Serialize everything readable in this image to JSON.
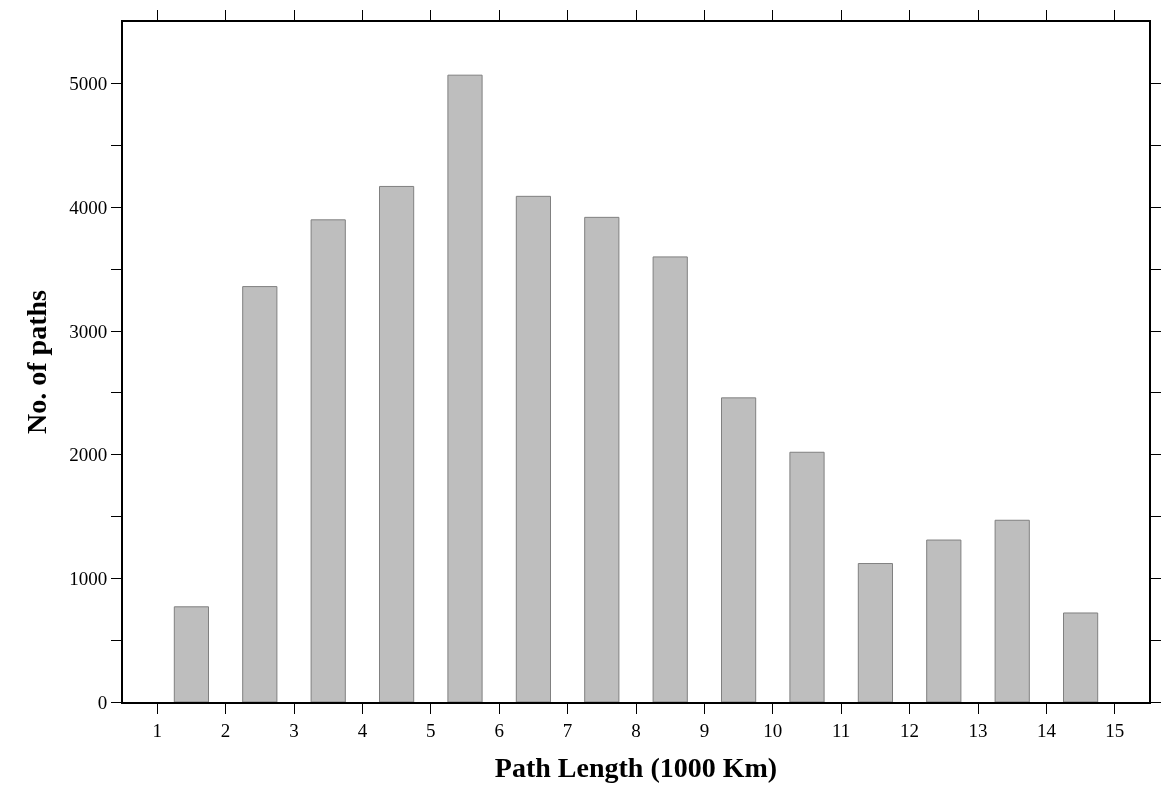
{
  "chart_data": {
    "type": "bar",
    "xlabel": "Path Length (1000 Km)",
    "ylabel": "No. of paths",
    "x": [
      1.5,
      2.5,
      3.5,
      4.5,
      5.5,
      6.5,
      7.5,
      8.5,
      9.5,
      10.5,
      11.5,
      12.5,
      13.5,
      14.5
    ],
    "values": [
      770,
      3360,
      3900,
      4170,
      5070,
      4090,
      3920,
      3600,
      2460,
      2020,
      1120,
      1310,
      1470,
      720
    ],
    "color": "#bebebe",
    "xlim": [
      0.5,
      15.5
    ],
    "xticks": [
      1,
      2,
      3,
      4,
      5,
      6,
      7,
      8,
      9,
      10,
      11,
      12,
      13,
      14,
      15
    ],
    "ylim": [
      0,
      5500
    ],
    "yticks": [
      0,
      {
        "value": 500,
        "label": null
      },
      1000,
      {
        "value": 1500,
        "label": null
      },
      2000,
      {
        "value": 2500,
        "label": null
      },
      3000,
      {
        "value": 3500,
        "label": null
      },
      4000,
      {
        "value": 4500,
        "label": null
      },
      5000
    ],
    "tick_labels": "xy"
  }
}
